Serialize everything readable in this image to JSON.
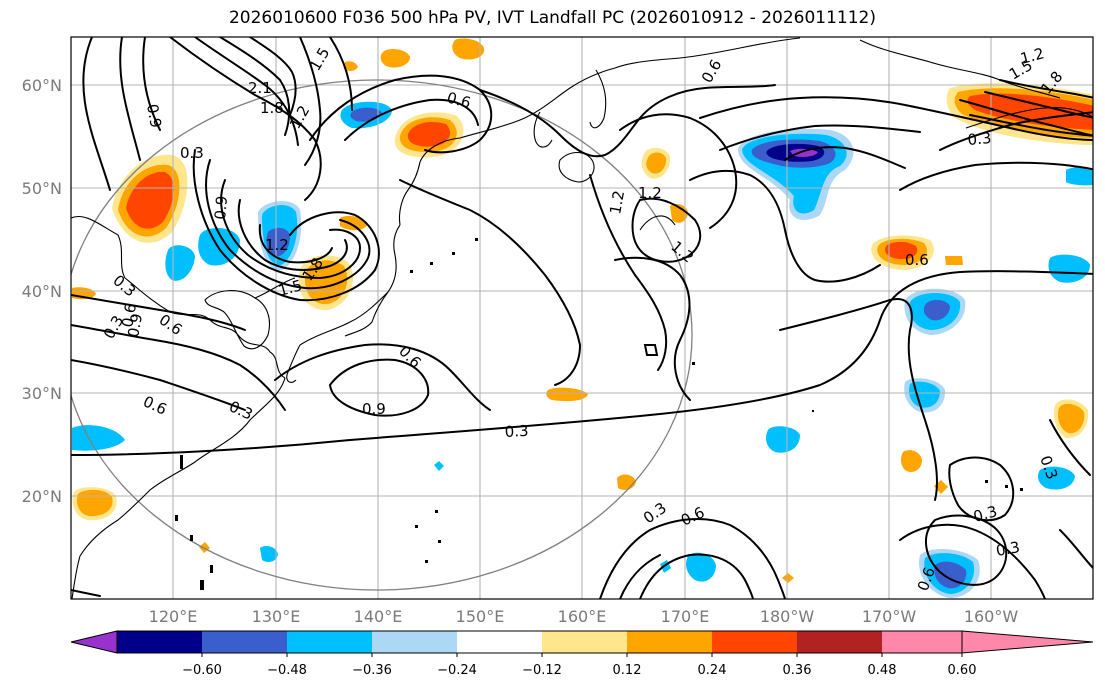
{
  "title": "2026010600 F036 500 hPa PV, IVT Landfall PC (2026010912 - 2026011112)",
  "lat_labels": [
    "60°N",
    "50°N",
    "40°N",
    "30°N",
    "20°N"
  ],
  "lon_labels": [
    "120°E",
    "130°E",
    "140°E",
    "150°E",
    "160°E",
    "170°E",
    "180°W",
    "170°W",
    "160°W"
  ],
  "contour_labels": [
    "0.9",
    "0.3",
    "2.1",
    "1.8",
    "1.2",
    "1.5",
    "0.6",
    "0.9",
    "1.2",
    "1.5",
    "1.8",
    "0.3",
    "0.6",
    "0.6",
    "0.3",
    "0.9",
    "0.3",
    "0.6",
    "0.6",
    "0.9",
    "1.2",
    "1.2",
    "0.6",
    "1.2",
    "1.5",
    "1.8",
    "1.2",
    "0.3",
    "0.6",
    "0.3",
    "0.3",
    "0.6",
    "0.3",
    "0.3",
    "0.6",
    "0.3"
  ],
  "colorbar": {
    "tick_labels": [
      "−0.60",
      "−0.48",
      "−0.36",
      "−0.24",
      "−0.12",
      "0.12",
      "0.24",
      "0.36",
      "0.48",
      "0.60"
    ],
    "colors": [
      "#9932cc",
      "#00008b",
      "#3a5fcd",
      "#00bfff",
      "#add8f5",
      "#ffffff",
      "#ffe68c",
      "#ffa500",
      "#ff4500",
      "#b22222",
      "#ff88aa"
    ]
  }
}
